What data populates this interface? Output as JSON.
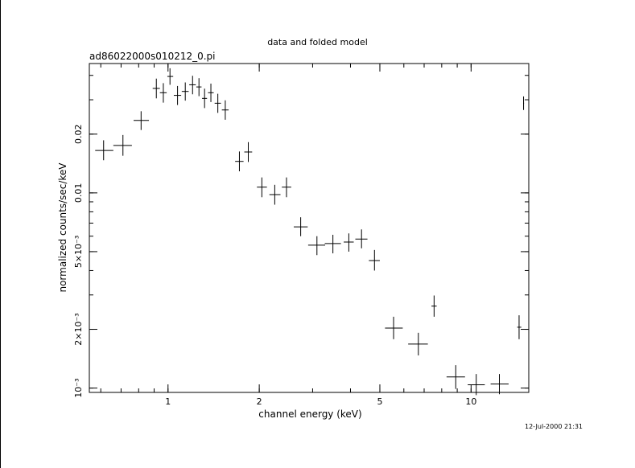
{
  "chart_data": {
    "type": "scatter",
    "title": "data and folded model",
    "subtitle": "ad86022000s010212_0.pi",
    "xlabel": "channel energy (keV)",
    "ylabel": "normalized counts/sec/keV",
    "x_scale": "log",
    "y_scale": "log",
    "xlim": [
      0.55,
      15.5
    ],
    "ylim": [
      0.00095,
      0.046
    ],
    "grid": false,
    "x_ticks": [
      {
        "value": 1,
        "label": "1"
      },
      {
        "value": 2,
        "label": "2"
      },
      {
        "value": 5,
        "label": "5"
      },
      {
        "value": 10,
        "label": "10"
      }
    ],
    "y_ticks": [
      {
        "value": 0.001,
        "label": "10⁻³"
      },
      {
        "value": 0.002,
        "label": "2×10⁻³"
      },
      {
        "value": 0.005,
        "label": "5×10⁻³"
      },
      {
        "value": 0.01,
        "label": "0.01"
      },
      {
        "value": 0.02,
        "label": "0.02"
      }
    ],
    "points": [
      {
        "x": 0.613,
        "y": 0.0165,
        "xlo": 0.575,
        "xhi": 0.66,
        "ylo": 0.0147,
        "yhi": 0.0186
      },
      {
        "x": 0.71,
        "y": 0.0175,
        "xlo": 0.66,
        "xhi": 0.76,
        "ylo": 0.0155,
        "yhi": 0.0198
      },
      {
        "x": 0.815,
        "y": 0.0235,
        "xlo": 0.77,
        "xhi": 0.865,
        "ylo": 0.021,
        "yhi": 0.0262
      },
      {
        "x": 0.915,
        "y": 0.0343,
        "xlo": 0.89,
        "xhi": 0.94,
        "ylo": 0.0305,
        "yhi": 0.0385
      },
      {
        "x": 0.965,
        "y": 0.0326,
        "xlo": 0.94,
        "xhi": 0.99,
        "ylo": 0.029,
        "yhi": 0.0365
      },
      {
        "x": 1.015,
        "y": 0.0395,
        "xlo": 0.995,
        "xhi": 1.04,
        "ylo": 0.0358,
        "yhi": 0.0435
      },
      {
        "x": 1.075,
        "y": 0.0316,
        "xlo": 1.045,
        "xhi": 1.105,
        "ylo": 0.0282,
        "yhi": 0.0353
      },
      {
        "x": 1.14,
        "y": 0.0331,
        "xlo": 1.11,
        "xhi": 1.17,
        "ylo": 0.0297,
        "yhi": 0.0368
      },
      {
        "x": 1.205,
        "y": 0.0358,
        "xlo": 1.175,
        "xhi": 1.235,
        "ylo": 0.032,
        "yhi": 0.0398
      },
      {
        "x": 1.265,
        "y": 0.0349,
        "xlo": 1.24,
        "xhi": 1.29,
        "ylo": 0.0313,
        "yhi": 0.0387
      },
      {
        "x": 1.32,
        "y": 0.0305,
        "xlo": 1.295,
        "xhi": 1.345,
        "ylo": 0.0272,
        "yhi": 0.0342
      },
      {
        "x": 1.385,
        "y": 0.0326,
        "xlo": 1.355,
        "xhi": 1.415,
        "ylo": 0.0292,
        "yhi": 0.0363
      },
      {
        "x": 1.46,
        "y": 0.0288,
        "xlo": 1.425,
        "xhi": 1.495,
        "ylo": 0.0257,
        "yhi": 0.0322
      },
      {
        "x": 1.545,
        "y": 0.0266,
        "xlo": 1.505,
        "xhi": 1.585,
        "ylo": 0.0237,
        "yhi": 0.0298
      },
      {
        "x": 1.72,
        "y": 0.0145,
        "xlo": 1.665,
        "xhi": 1.775,
        "ylo": 0.0129,
        "yhi": 0.0163
      },
      {
        "x": 1.84,
        "y": 0.0162,
        "xlo": 1.785,
        "xhi": 1.895,
        "ylo": 0.0144,
        "yhi": 0.0182
      },
      {
        "x": 2.04,
        "y": 0.0107,
        "xlo": 1.965,
        "xhi": 2.12,
        "ylo": 0.0095,
        "yhi": 0.012
      },
      {
        "x": 2.25,
        "y": 0.0098,
        "xlo": 2.16,
        "xhi": 2.35,
        "ylo": 0.0087,
        "yhi": 0.011
      },
      {
        "x": 2.46,
        "y": 0.0107,
        "xlo": 2.375,
        "xhi": 2.55,
        "ylo": 0.0095,
        "yhi": 0.012
      },
      {
        "x": 2.74,
        "y": 0.0067,
        "xlo": 2.6,
        "xhi": 2.89,
        "ylo": 0.006,
        "yhi": 0.0075
      },
      {
        "x": 3.1,
        "y": 0.0054,
        "xlo": 2.9,
        "xhi": 3.3,
        "ylo": 0.0048,
        "yhi": 0.006
      },
      {
        "x": 3.5,
        "y": 0.0055,
        "xlo": 3.29,
        "xhi": 3.72,
        "ylo": 0.0049,
        "yhi": 0.0061
      },
      {
        "x": 3.95,
        "y": 0.0056,
        "xlo": 3.8,
        "xhi": 4.1,
        "ylo": 0.005,
        "yhi": 0.0062
      },
      {
        "x": 4.35,
        "y": 0.0058,
        "xlo": 4.15,
        "xhi": 4.55,
        "ylo": 0.0052,
        "yhi": 0.0065
      },
      {
        "x": 4.8,
        "y": 0.0045,
        "xlo": 4.6,
        "xhi": 5.0,
        "ylo": 0.004,
        "yhi": 0.0051
      },
      {
        "x": 5.55,
        "y": 0.00203,
        "xlo": 5.2,
        "xhi": 5.95,
        "ylo": 0.00178,
        "yhi": 0.00232
      },
      {
        "x": 6.7,
        "y": 0.00168,
        "xlo": 6.2,
        "xhi": 7.2,
        "ylo": 0.00147,
        "yhi": 0.00192
      },
      {
        "x": 7.55,
        "y": 0.00263,
        "xlo": 7.4,
        "xhi": 7.7,
        "ylo": 0.00232,
        "yhi": 0.00298
      },
      {
        "x": 8.9,
        "y": 0.00114,
        "xlo": 8.3,
        "xhi": 9.55,
        "ylo": 0.00099,
        "yhi": 0.00131
      },
      {
        "x": 10.4,
        "y": 0.00104,
        "xlo": 9.75,
        "xhi": 11.1,
        "ylo": 0.00092,
        "yhi": 0.00118
      },
      {
        "x": 12.4,
        "y": 0.00105,
        "xlo": 11.6,
        "xhi": 13.3,
        "ylo": 0.00093,
        "yhi": 0.00118
      },
      {
        "x": 14.4,
        "y": 0.00205,
        "xlo": 14.2,
        "xhi": 14.65,
        "ylo": 0.00178,
        "yhi": 0.00236
      },
      {
        "x": 14.9,
        "y": 0.0288,
        "xlo": 14.85,
        "xhi": 14.95,
        "ylo": 0.0266,
        "yhi": 0.0312
      }
    ]
  },
  "timestamp": "12-Jul-2000 21:31"
}
